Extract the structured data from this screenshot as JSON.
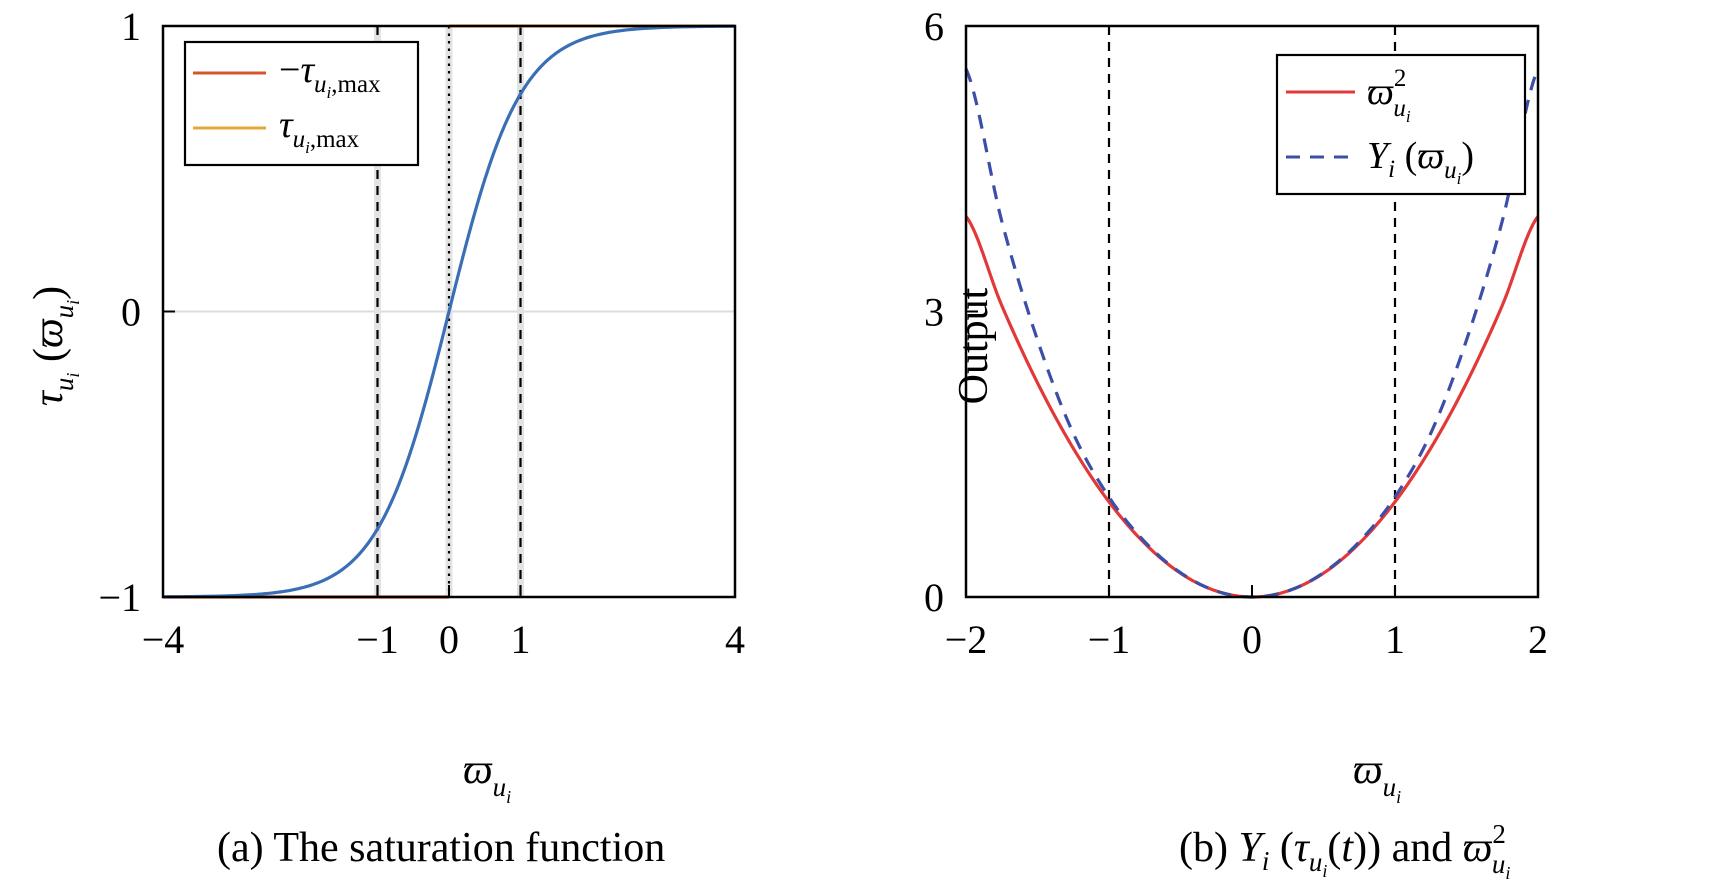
{
  "chart_data": [
    {
      "type": "line",
      "caption": "(a) The saturation function",
      "xlabel": "ϖ_{u_i}",
      "ylabel": "τ_{u_i}(ϖ_{u_i})",
      "xlim": [
        -4,
        4
      ],
      "ylim": [
        -1,
        1
      ],
      "xticks": [
        -4,
        -1,
        0,
        1,
        4
      ],
      "xtick_labels": [
        "−4",
        "−1",
        "0",
        "1",
        "4"
      ],
      "yticks": [
        -1,
        0,
        1
      ],
      "ytick_labels": [
        "−1",
        "0",
        "1"
      ],
      "vertical_lines": [
        {
          "x": -1,
          "style": "dashed"
        },
        {
          "x": 0,
          "style": "dotted"
        },
        {
          "x": 1,
          "style": "dashed"
        }
      ],
      "legend_position": "top-left",
      "series": [
        {
          "name": "−τ_{u_i,max}",
          "color": "#d4572b",
          "x": [
            -4,
            0
          ],
          "y": [
            -1,
            -1
          ]
        },
        {
          "name": "τ_{u_i,max}",
          "color": "#e5a93a",
          "x": [
            0,
            4
          ],
          "y": [
            1,
            1
          ]
        },
        {
          "color": "#3a6fb5",
          "x": [
            -4,
            -3.5,
            -3,
            -2.5,
            -2,
            -1.5,
            -1,
            -0.5,
            0,
            0.5,
            1,
            1.5,
            2,
            2.5,
            3,
            3.5,
            4
          ],
          "y": [
            -0.999,
            -0.998,
            -0.995,
            -0.987,
            -0.964,
            -0.905,
            -0.762,
            -0.462,
            0,
            0.462,
            0.762,
            0.905,
            0.964,
            0.987,
            0.995,
            0.998,
            0.999
          ]
        }
      ]
    },
    {
      "type": "line",
      "caption": "(b) Y_i(τ_{u_i}(t)) and ϖ²_{u_i}",
      "xlabel": "ϖ_{u_i}",
      "ylabel": "Output",
      "xlim": [
        -2,
        2
      ],
      "ylim": [
        0,
        6
      ],
      "xticks": [
        -2,
        -1,
        0,
        1,
        2
      ],
      "xtick_labels": [
        "−2",
        "−1",
        "0",
        "1",
        "2"
      ],
      "yticks": [
        0,
        3,
        6
      ],
      "ytick_labels": [
        "0",
        "3",
        "6"
      ],
      "vertical_lines": [
        {
          "x": -1,
          "style": "dashed"
        },
        {
          "x": 1,
          "style": "dashed"
        }
      ],
      "legend_position": "top-right",
      "series": [
        {
          "name": "ϖ²_{u_i}",
          "color": "#e23838",
          "style": "solid",
          "x": [
            -2,
            -1.75,
            -1.5,
            -1.25,
            -1,
            -0.75,
            -0.5,
            -0.25,
            0,
            0.25,
            0.5,
            0.75,
            1,
            1.25,
            1.5,
            1.75,
            2
          ],
          "y": [
            4,
            3.063,
            2.25,
            1.563,
            1,
            0.563,
            0.25,
            0.063,
            0,
            0.063,
            0.25,
            0.563,
            1,
            1.563,
            2.25,
            3.063,
            4
          ]
        },
        {
          "name": "Y_i(ϖ_{u_i})",
          "color": "#3b4fa8",
          "style": "dashed",
          "x": [
            -2,
            -1.75,
            -1.5,
            -1.25,
            -1,
            -0.75,
            -0.5,
            -0.25,
            0,
            0.25,
            0.5,
            0.75,
            1,
            1.25,
            1.5,
            1.75,
            2
          ],
          "y": [
            5.55,
            3.95,
            2.7,
            1.72,
            1.05,
            0.58,
            0.255,
            0.063,
            0,
            0.063,
            0.255,
            0.58,
            1.05,
            1.72,
            2.7,
            3.95,
            5.55
          ]
        }
      ]
    }
  ]
}
